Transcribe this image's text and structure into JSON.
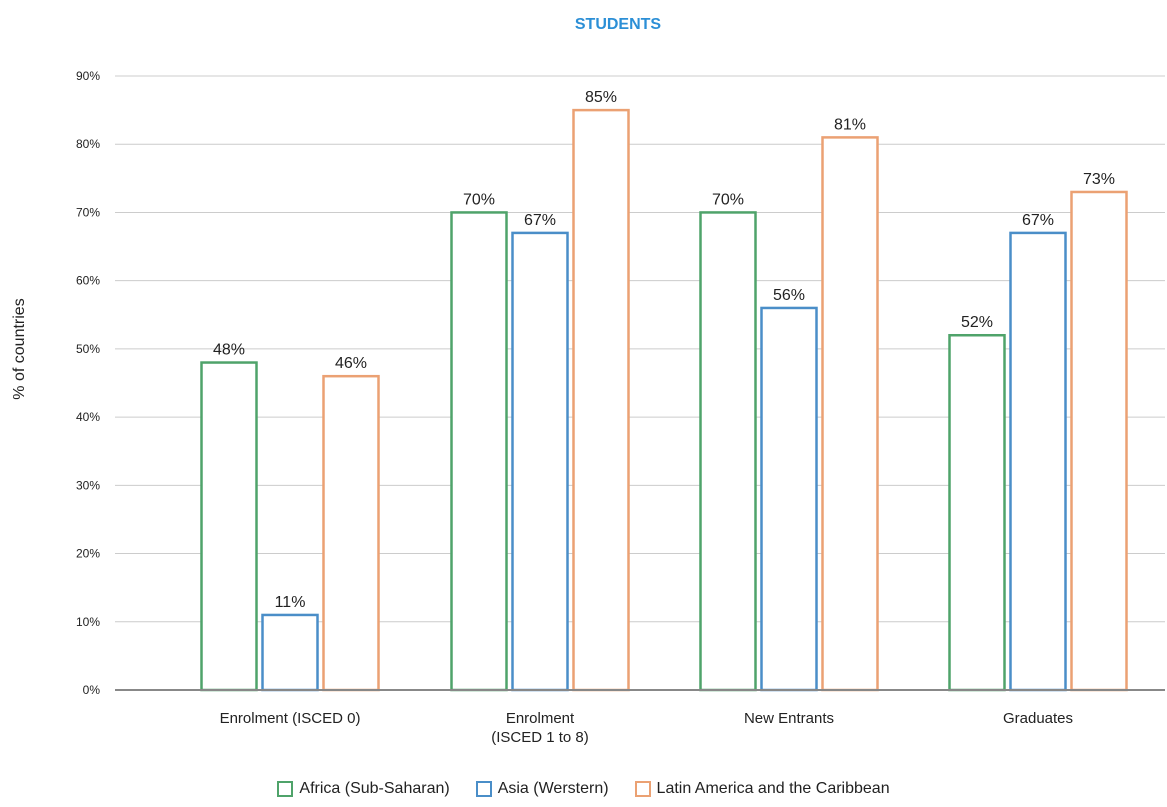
{
  "chart_data": {
    "type": "bar",
    "title": "STUDENTS",
    "ylabel": "% of countries",
    "xlabel": "",
    "ylim": [
      0,
      90
    ],
    "yticks": [
      "0%",
      "10%",
      "20%",
      "30%",
      "40%",
      "50%",
      "60%",
      "70%",
      "80%",
      "90%"
    ],
    "grid": true,
    "legend_position": "bottom",
    "categories": [
      [
        "Enrolment (ISCED 0)"
      ],
      [
        "Enrolment",
        "(ISCED 1 to 8)"
      ],
      [
        "New Entrants"
      ],
      [
        "Graduates"
      ]
    ],
    "series": [
      {
        "name": "Africa (Sub-Saharan)",
        "color": "#4fa36a",
        "values": [
          48,
          70,
          70,
          52
        ],
        "labels": [
          "48%",
          "70%",
          "70%",
          "52%"
        ]
      },
      {
        "name": "Asia (Werstern)",
        "color": "#4a8ec8",
        "values": [
          11,
          67,
          56,
          67
        ],
        "labels": [
          "11%",
          "67%",
          "56%",
          "67%"
        ]
      },
      {
        "name": "Latin America and the Caribbean",
        "color": "#eba173",
        "values": [
          46,
          85,
          81,
          73
        ],
        "labels": [
          "46%",
          "85%",
          "81%",
          "73%"
        ]
      }
    ],
    "title_color": "#2c8fd6"
  }
}
